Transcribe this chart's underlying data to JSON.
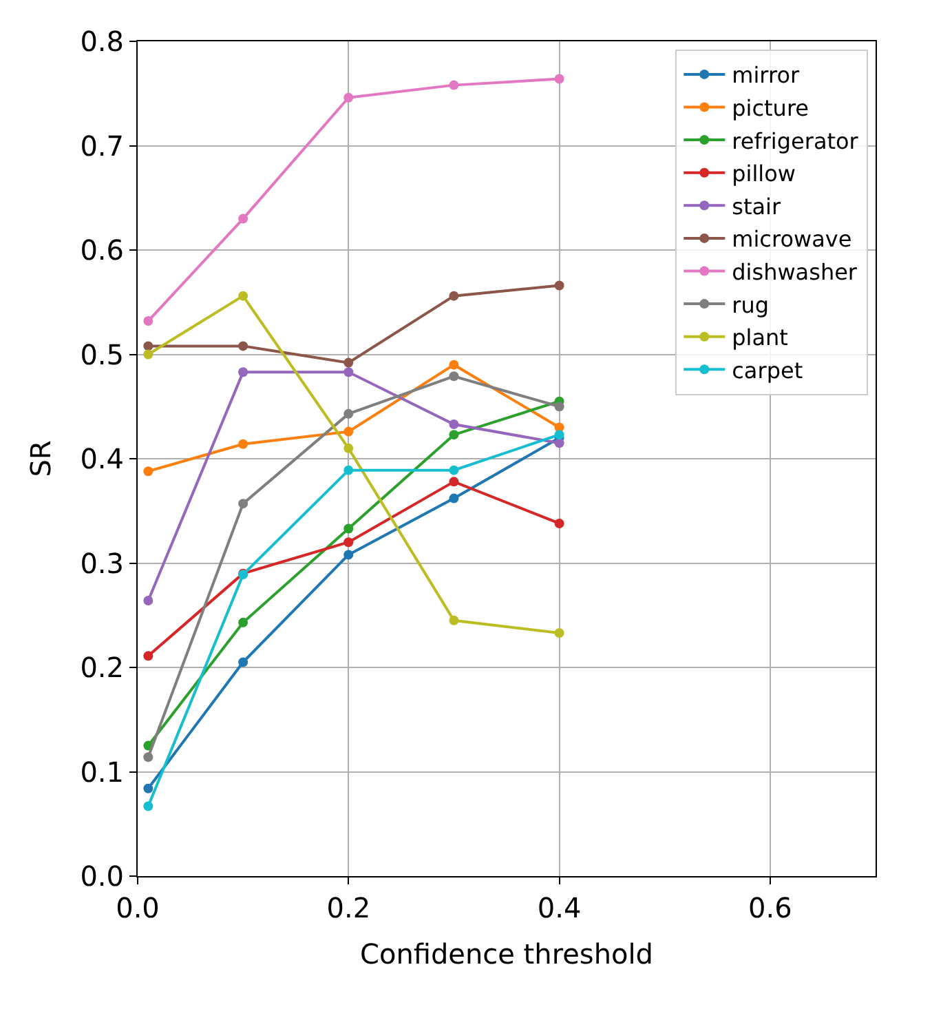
{
  "chart_data": {
    "type": "line",
    "xlabel": "Confidence threshold",
    "ylabel": "SR",
    "x": [
      0.01,
      0.1,
      0.2,
      0.3,
      0.4
    ],
    "xlim": [
      0,
      0.7
    ],
    "xticks": [
      {
        "value": 0,
        "label": "0.0"
      },
      0.2,
      0.4,
      0.6
    ],
    "ylim": [
      0,
      0.8
    ],
    "yticks": [
      {
        "value": 0,
        "label": "0.0"
      },
      0.1,
      0.2,
      0.3,
      0.4,
      0.5,
      0.6,
      0.7,
      0.8
    ],
    "grid": true,
    "legend": "top right",
    "marker": "circle",
    "line_style": "solid",
    "series": [
      {
        "name": "mirror",
        "color": "#1f77b4",
        "values": [
          0.084,
          0.205,
          0.308,
          0.362,
          0.42
        ]
      },
      {
        "name": "picture",
        "color": "#ff7f0e",
        "values": [
          0.388,
          0.414,
          0.426,
          0.49,
          0.43
        ]
      },
      {
        "name": "refrigerator",
        "color": "#2ca02c",
        "values": [
          0.125,
          0.243,
          0.333,
          0.423,
          0.455
        ]
      },
      {
        "name": "pillow",
        "color": "#d62728",
        "values": [
          0.211,
          0.29,
          0.32,
          0.378,
          0.338
        ]
      },
      {
        "name": "stair",
        "color": "#9467bd",
        "values": [
          0.264,
          0.483,
          0.483,
          0.433,
          0.415
        ]
      },
      {
        "name": "microwave",
        "color": "#8c564b",
        "values": [
          0.508,
          0.508,
          0.492,
          0.556,
          0.566
        ]
      },
      {
        "name": "dishwasher",
        "color": "#e377c2",
        "values": [
          0.532,
          0.63,
          0.746,
          0.758,
          0.764
        ]
      },
      {
        "name": "rug",
        "color": "#7f7f7f",
        "values": [
          0.114,
          0.357,
          0.443,
          0.479,
          0.45
        ]
      },
      {
        "name": "plant",
        "color": "#bcbd22",
        "values": [
          0.5,
          0.556,
          0.41,
          0.245,
          0.233
        ]
      },
      {
        "name": "carpet",
        "color": "#17becf",
        "values": [
          0.067,
          0.289,
          0.389,
          0.389,
          0.423
        ]
      }
    ]
  }
}
